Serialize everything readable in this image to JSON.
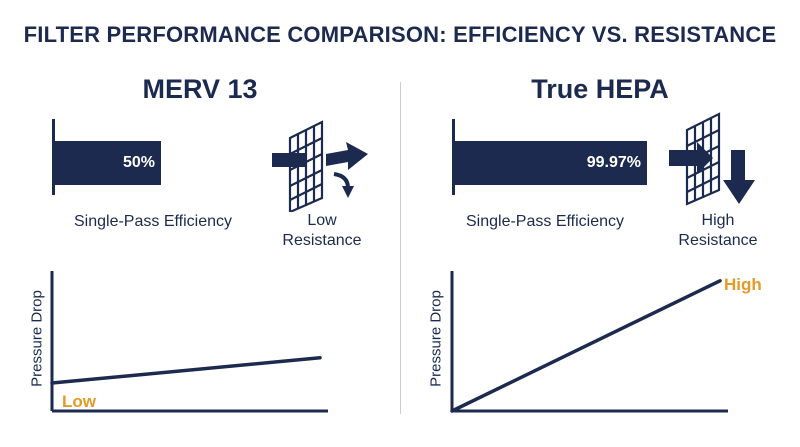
{
  "title": "FILTER PERFORMANCE COMPARISON: EFFICIENCY VS. RESISTANCE",
  "colors": {
    "navy": "#1b2a4e",
    "accent": "#e39b27",
    "divider": "#c9ccd2"
  },
  "panels": [
    {
      "name": "MERV 13",
      "efficiency_value": 50,
      "efficiency_label": "50%",
      "efficiency_caption": "Single-Pass Efficiency",
      "resistance_line1": "Low",
      "resistance_line2": "Resistance",
      "icon": "filter-mesh-arrow-through-icon"
    },
    {
      "name": "True HEPA",
      "efficiency_value": 99.97,
      "efficiency_label": "99.97%",
      "efficiency_caption": "Single-Pass Efficiency",
      "resistance_line1": "High",
      "resistance_line2": "Resistance",
      "icon": "filter-mesh-arrow-down-icon"
    }
  ],
  "chart_data": [
    {
      "type": "line",
      "ylabel": "Pressure Drop",
      "series": [
        {
          "x": [
            0,
            1
          ],
          "y": [
            0.2,
            0.38
          ]
        }
      ],
      "ylim": [
        0,
        1
      ],
      "annotation": "Low",
      "grid": false
    },
    {
      "type": "line",
      "ylabel": "Pressure Drop",
      "series": [
        {
          "x": [
            0,
            1
          ],
          "y": [
            0,
            0.93
          ]
        }
      ],
      "ylim": [
        0,
        1
      ],
      "annotation": "High",
      "grid": false
    }
  ]
}
